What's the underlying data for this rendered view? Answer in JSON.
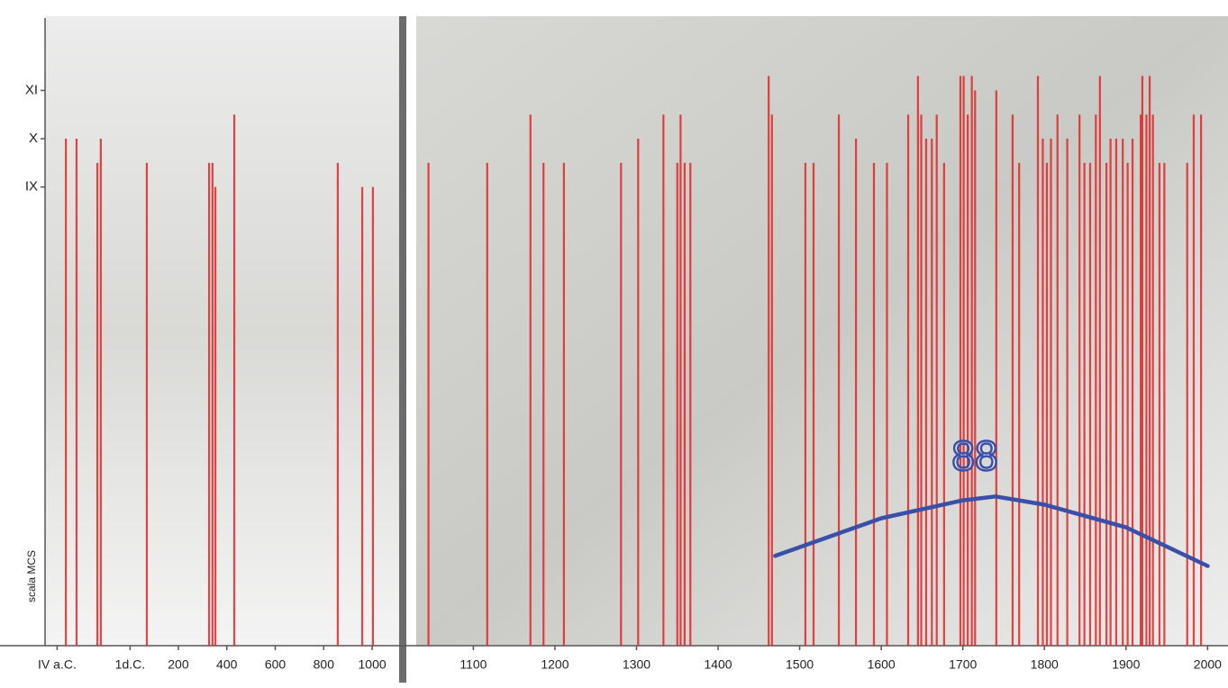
{
  "chart_data": [
    {
      "type": "bar",
      "ylabel": "scala MCS",
      "color": "#e02424",
      "x": [
        -264,
        -220,
        -134,
        -120,
        70,
        327,
        341,
        353,
        431,
        858,
        959,
        1003
      ],
      "values": [
        10,
        10,
        9.5,
        10,
        9.5,
        9.5,
        9.5,
        9,
        10.5,
        9.5,
        9,
        9
      ],
      "xlim": [
        -350,
        1100
      ],
      "xticks": [
        {
          "value": -300,
          "label": "IV a.C."
        },
        {
          "value": 1,
          "label": "1d.C."
        },
        200,
        400,
        600,
        800,
        1000
      ],
      "ylim": [
        -0.5,
        12.5
      ],
      "yticks": [
        {
          "value": 9,
          "label": "IX"
        },
        {
          "value": 10,
          "label": "X"
        },
        {
          "value": 11,
          "label": "XI"
        }
      ]
    },
    {
      "type": "bar",
      "color": "#e02424",
      "x": [
        1045,
        1117,
        1170,
        1186,
        1211,
        1281,
        1302,
        1333,
        1350,
        1354,
        1359,
        1366,
        1462,
        1466,
        1507,
        1517,
        1548,
        1569,
        1591,
        1607,
        1633,
        1645,
        1649,
        1655,
        1662,
        1668,
        1677,
        1697,
        1701,
        1706,
        1711,
        1715,
        1741,
        1761,
        1769,
        1792,
        1798,
        1803,
        1808,
        1816,
        1828,
        1843,
        1849,
        1856,
        1863,
        1868,
        1876,
        1881,
        1888,
        1896,
        1902,
        1908,
        1918,
        1920,
        1925,
        1929,
        1933,
        1941,
        1947,
        1975,
        1983,
        1992
      ],
      "values": [
        9.5,
        9.5,
        10.5,
        9.5,
        9.5,
        9.5,
        10,
        10.5,
        9.5,
        10.5,
        9.5,
        9.5,
        11.3,
        10.5,
        9.5,
        9.5,
        10.5,
        10,
        9.5,
        9.5,
        10.5,
        11.3,
        10.5,
        10,
        10,
        10.5,
        9.5,
        11.3,
        11.3,
        10.5,
        11.3,
        11,
        11,
        10.5,
        9.5,
        11.3,
        10,
        9.5,
        10,
        10.5,
        10,
        10.5,
        9.5,
        9.5,
        10.5,
        11.3,
        9.5,
        10,
        10,
        10,
        9.5,
        10,
        10.5,
        11.3,
        10.5,
        11.3,
        10.5,
        9.5,
        9.5,
        9.5,
        10.5,
        10.5
      ],
      "xlim": [
        1030,
        2025
      ],
      "xticks": [
        1100,
        1200,
        1300,
        1400,
        1500,
        1600,
        1700,
        1800,
        1900,
        2000
      ],
      "ylim": [
        -0.5,
        12.5
      ],
      "curve": {
        "color": "#3a4fa8",
        "x": [
          1470,
          1500,
          1600,
          1700,
          1740,
          1800,
          1900,
          2000
        ],
        "values": [
          1.36,
          1.54,
          2.14,
          2.51,
          2.59,
          2.42,
          1.95,
          1.15
        ]
      },
      "annotation": "88"
    }
  ]
}
